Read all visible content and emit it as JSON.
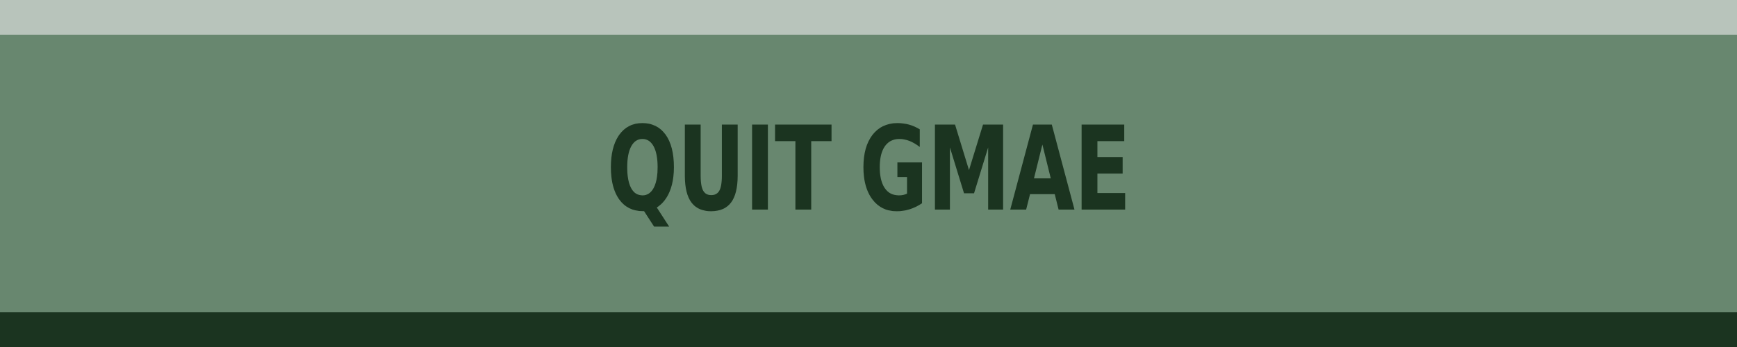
{
  "screen": {
    "title": "QUIT GMAE",
    "colors": {
      "top_bar": "#b8c4bb",
      "main_panel": "#68876f",
      "bottom_bar": "#1b3420",
      "title_text": "#1b3420"
    }
  }
}
